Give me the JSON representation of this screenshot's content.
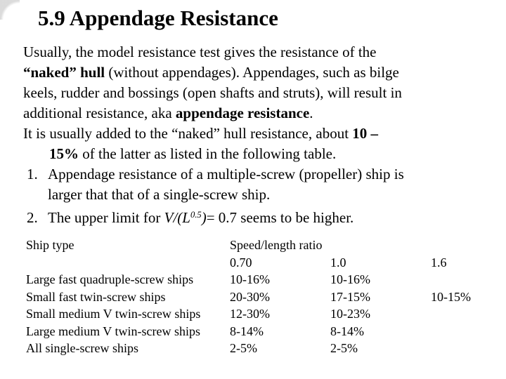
{
  "slide": {
    "title": "5.9 Appendage Resistance"
  },
  "body": {
    "lines": [
      {
        "segments": [
          {
            "t": "Usually, the model resistance test gives the resistance of the"
          }
        ]
      },
      {
        "segments": [
          {
            "t": "“naked” hull",
            "b": true
          },
          {
            "t": " (without appendages). Appendages, such as bilge"
          }
        ]
      },
      {
        "segments": [
          {
            "t": "keels, rudder and bossings (open shafts and struts), will result in"
          }
        ]
      },
      {
        "segments": [
          {
            "t": "additional resistance, aka "
          },
          {
            "t": "appendage resistance",
            "b": true
          },
          {
            "t": "."
          }
        ]
      },
      {
        "segments": [
          {
            "t": "It is usually added to the “naked” hull resistance, about "
          },
          {
            "t": "10 –",
            "b": true
          }
        ]
      },
      {
        "indent": true,
        "segments": [
          {
            "t": "15%",
            "b": true
          },
          {
            "t": " of the latter as listed in the following table."
          }
        ]
      },
      {
        "num": "1.",
        "segments": [
          {
            "t": "Appendage resistance of a multiple-screw (propeller) ship is"
          }
        ]
      },
      {
        "hang": true,
        "segments": [
          {
            "t": "larger that that of a single-screw ship."
          }
        ]
      },
      {
        "num": "2.",
        "segments": [
          {
            "t": "The upper limit for "
          },
          {
            "t": "V/(L",
            "i": true
          },
          {
            "t": "0.5",
            "i": true,
            "sup": true
          },
          {
            "t": ")",
            "i": true
          },
          {
            "t": "= 0.7 seems to be higher."
          }
        ]
      }
    ]
  },
  "table": {
    "header": {
      "ship_type": "Ship type",
      "ratio_label": "Speed/length ratio"
    },
    "subheader": {
      "r070": "0.70",
      "r10": "1.0",
      "r16": "1.6"
    },
    "rows": [
      {
        "type": "Large fast quadruple-screw ships",
        "c1": "10-16%",
        "c2": "10-16%",
        "c3": ""
      },
      {
        "type": "Small fast twin-screw ships",
        "c1": "20-30%",
        "c2": "17-15%",
        "c3": "10-15%"
      },
      {
        "type": "Small medium V twin-screw ships",
        "c1": "12-30%",
        "c2": "10-23%",
        "c3": ""
      },
      {
        "type": "Large medium V twin-screw ships",
        "c1": "8-14%",
        "c2": "8-14%",
        "c3": ""
      },
      {
        "type": "All single-screw ships",
        "c1": "2-5%",
        "c2": "2-5%",
        "c3": ""
      }
    ]
  },
  "colors": {
    "text": "#000000",
    "background": "#ffffff",
    "corner_shade": "#bebebe"
  }
}
